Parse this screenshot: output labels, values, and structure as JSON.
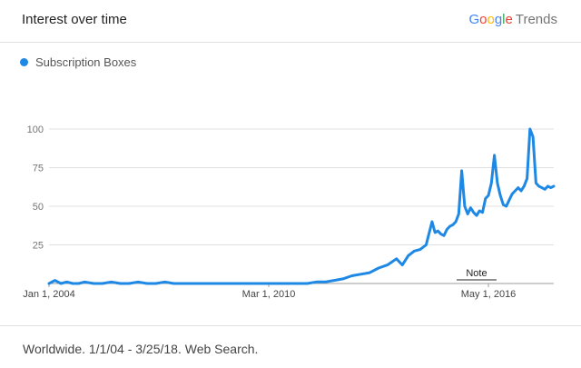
{
  "header": {
    "title": "Interest over time",
    "brand_parts": [
      "G",
      "o",
      "o",
      "g",
      "l",
      "e"
    ],
    "brand_suffix": "Trends"
  },
  "legend": {
    "series_label": "Subscription Boxes",
    "color": "#1e88e5"
  },
  "note": "Note",
  "footer": {
    "text": "Worldwide. 1/1/04 - 3/25/18. Web Search."
  },
  "colors": {
    "series": "#1e88e5",
    "grid": "#e0e0e0",
    "axis": "#9e9e9e"
  },
  "chart_data": {
    "type": "line",
    "title": "Interest over time",
    "xlabel": "",
    "ylabel": "",
    "ylim": [
      0,
      100
    ],
    "y_ticks": [
      25,
      50,
      75,
      100
    ],
    "x_ticks": [
      "Jan 1, 2004",
      "Mar 1, 2010",
      "May 1, 2016"
    ],
    "xlim": [
      "2004-01",
      "2018-03"
    ],
    "grid": true,
    "series": [
      {
        "name": "Subscription Boxes",
        "x": [
          "2004-01",
          "2004-03",
          "2004-05",
          "2004-07",
          "2004-09",
          "2004-11",
          "2005-01",
          "2005-04",
          "2005-07",
          "2005-10",
          "2006-01",
          "2006-04",
          "2006-07",
          "2006-10",
          "2007-01",
          "2007-04",
          "2007-07",
          "2007-10",
          "2008-01",
          "2008-04",
          "2008-07",
          "2008-10",
          "2009-01",
          "2009-04",
          "2009-07",
          "2009-10",
          "2010-01",
          "2010-04",
          "2010-07",
          "2010-10",
          "2011-01",
          "2011-04",
          "2011-07",
          "2011-10",
          "2012-01",
          "2012-04",
          "2012-07",
          "2012-10",
          "2013-01",
          "2013-04",
          "2013-07",
          "2013-10",
          "2013-12",
          "2014-02",
          "2014-04",
          "2014-06",
          "2014-08",
          "2014-10",
          "2014-11",
          "2014-12",
          "2015-01",
          "2015-02",
          "2015-03",
          "2015-04",
          "2015-05",
          "2015-06",
          "2015-07",
          "2015-08",
          "2015-09",
          "2015-10",
          "2015-11",
          "2015-12",
          "2016-01",
          "2016-02",
          "2016-03",
          "2016-04",
          "2016-05",
          "2016-06",
          "2016-07",
          "2016-08",
          "2016-09",
          "2016-10",
          "2016-11",
          "2016-12",
          "2017-01",
          "2017-02",
          "2017-03",
          "2017-04",
          "2017-05",
          "2017-06",
          "2017-07",
          "2017-08",
          "2017-09",
          "2017-10",
          "2017-11",
          "2017-12",
          "2018-01",
          "2018-02",
          "2018-03"
        ],
        "y": [
          0,
          2,
          0,
          1,
          0,
          0,
          1,
          0,
          0,
          1,
          0,
          0,
          1,
          0,
          0,
          1,
          0,
          0,
          0,
          0,
          0,
          0,
          0,
          0,
          0,
          0,
          0,
          0,
          0,
          0,
          0,
          0,
          1,
          1,
          2,
          3,
          5,
          6,
          7,
          10,
          12,
          16,
          12,
          18,
          21,
          22,
          25,
          40,
          33,
          34,
          32,
          31,
          35,
          37,
          38,
          40,
          45,
          73,
          50,
          45,
          49,
          46,
          44,
          47,
          46,
          55,
          57,
          65,
          83,
          65,
          57,
          51,
          50,
          54,
          58,
          60,
          62,
          60,
          63,
          68,
          100,
          95,
          65,
          63,
          62,
          61,
          63,
          62,
          63
        ]
      }
    ]
  }
}
